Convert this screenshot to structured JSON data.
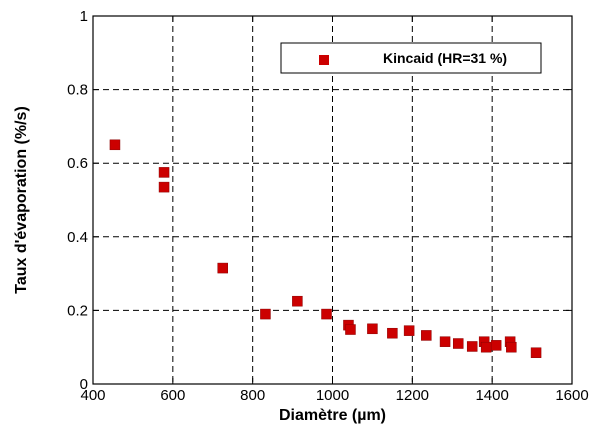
{
  "chart_data": {
    "type": "scatter",
    "xlabel": "Diamètre (µm)",
    "ylabel": "Taux d'évaporation (%/s)",
    "xlim": [
      400,
      1600
    ],
    "ylim": [
      0,
      1
    ],
    "xticks": [
      400,
      600,
      800,
      1000,
      1200,
      1400,
      1600
    ],
    "yticks": [
      0,
      0.2,
      0.4,
      0.6,
      0.8,
      1
    ],
    "ytick_labels": [
      "0",
      "0.2",
      "0.4",
      "0.6",
      "0.8",
      "1"
    ],
    "grid": "dashed",
    "legend_position": "top-right",
    "series": [
      {
        "name": "Kincaid (HR=31 %)",
        "color": "#cc0000",
        "marker": "square",
        "points": [
          [
            455,
            0.65
          ],
          [
            578,
            0.575
          ],
          [
            578,
            0.535
          ],
          [
            725,
            0.315
          ],
          [
            832,
            0.19
          ],
          [
            912,
            0.225
          ],
          [
            985,
            0.19
          ],
          [
            1040,
            0.16
          ],
          [
            1045,
            0.148
          ],
          [
            1100,
            0.15
          ],
          [
            1150,
            0.138
          ],
          [
            1192,
            0.145
          ],
          [
            1235,
            0.132
          ],
          [
            1282,
            0.115
          ],
          [
            1315,
            0.11
          ],
          [
            1350,
            0.102
          ],
          [
            1380,
            0.115
          ],
          [
            1385,
            0.1
          ],
          [
            1410,
            0.105
          ],
          [
            1445,
            0.115
          ],
          [
            1448,
            0.1
          ],
          [
            1510,
            0.085
          ]
        ]
      }
    ]
  }
}
